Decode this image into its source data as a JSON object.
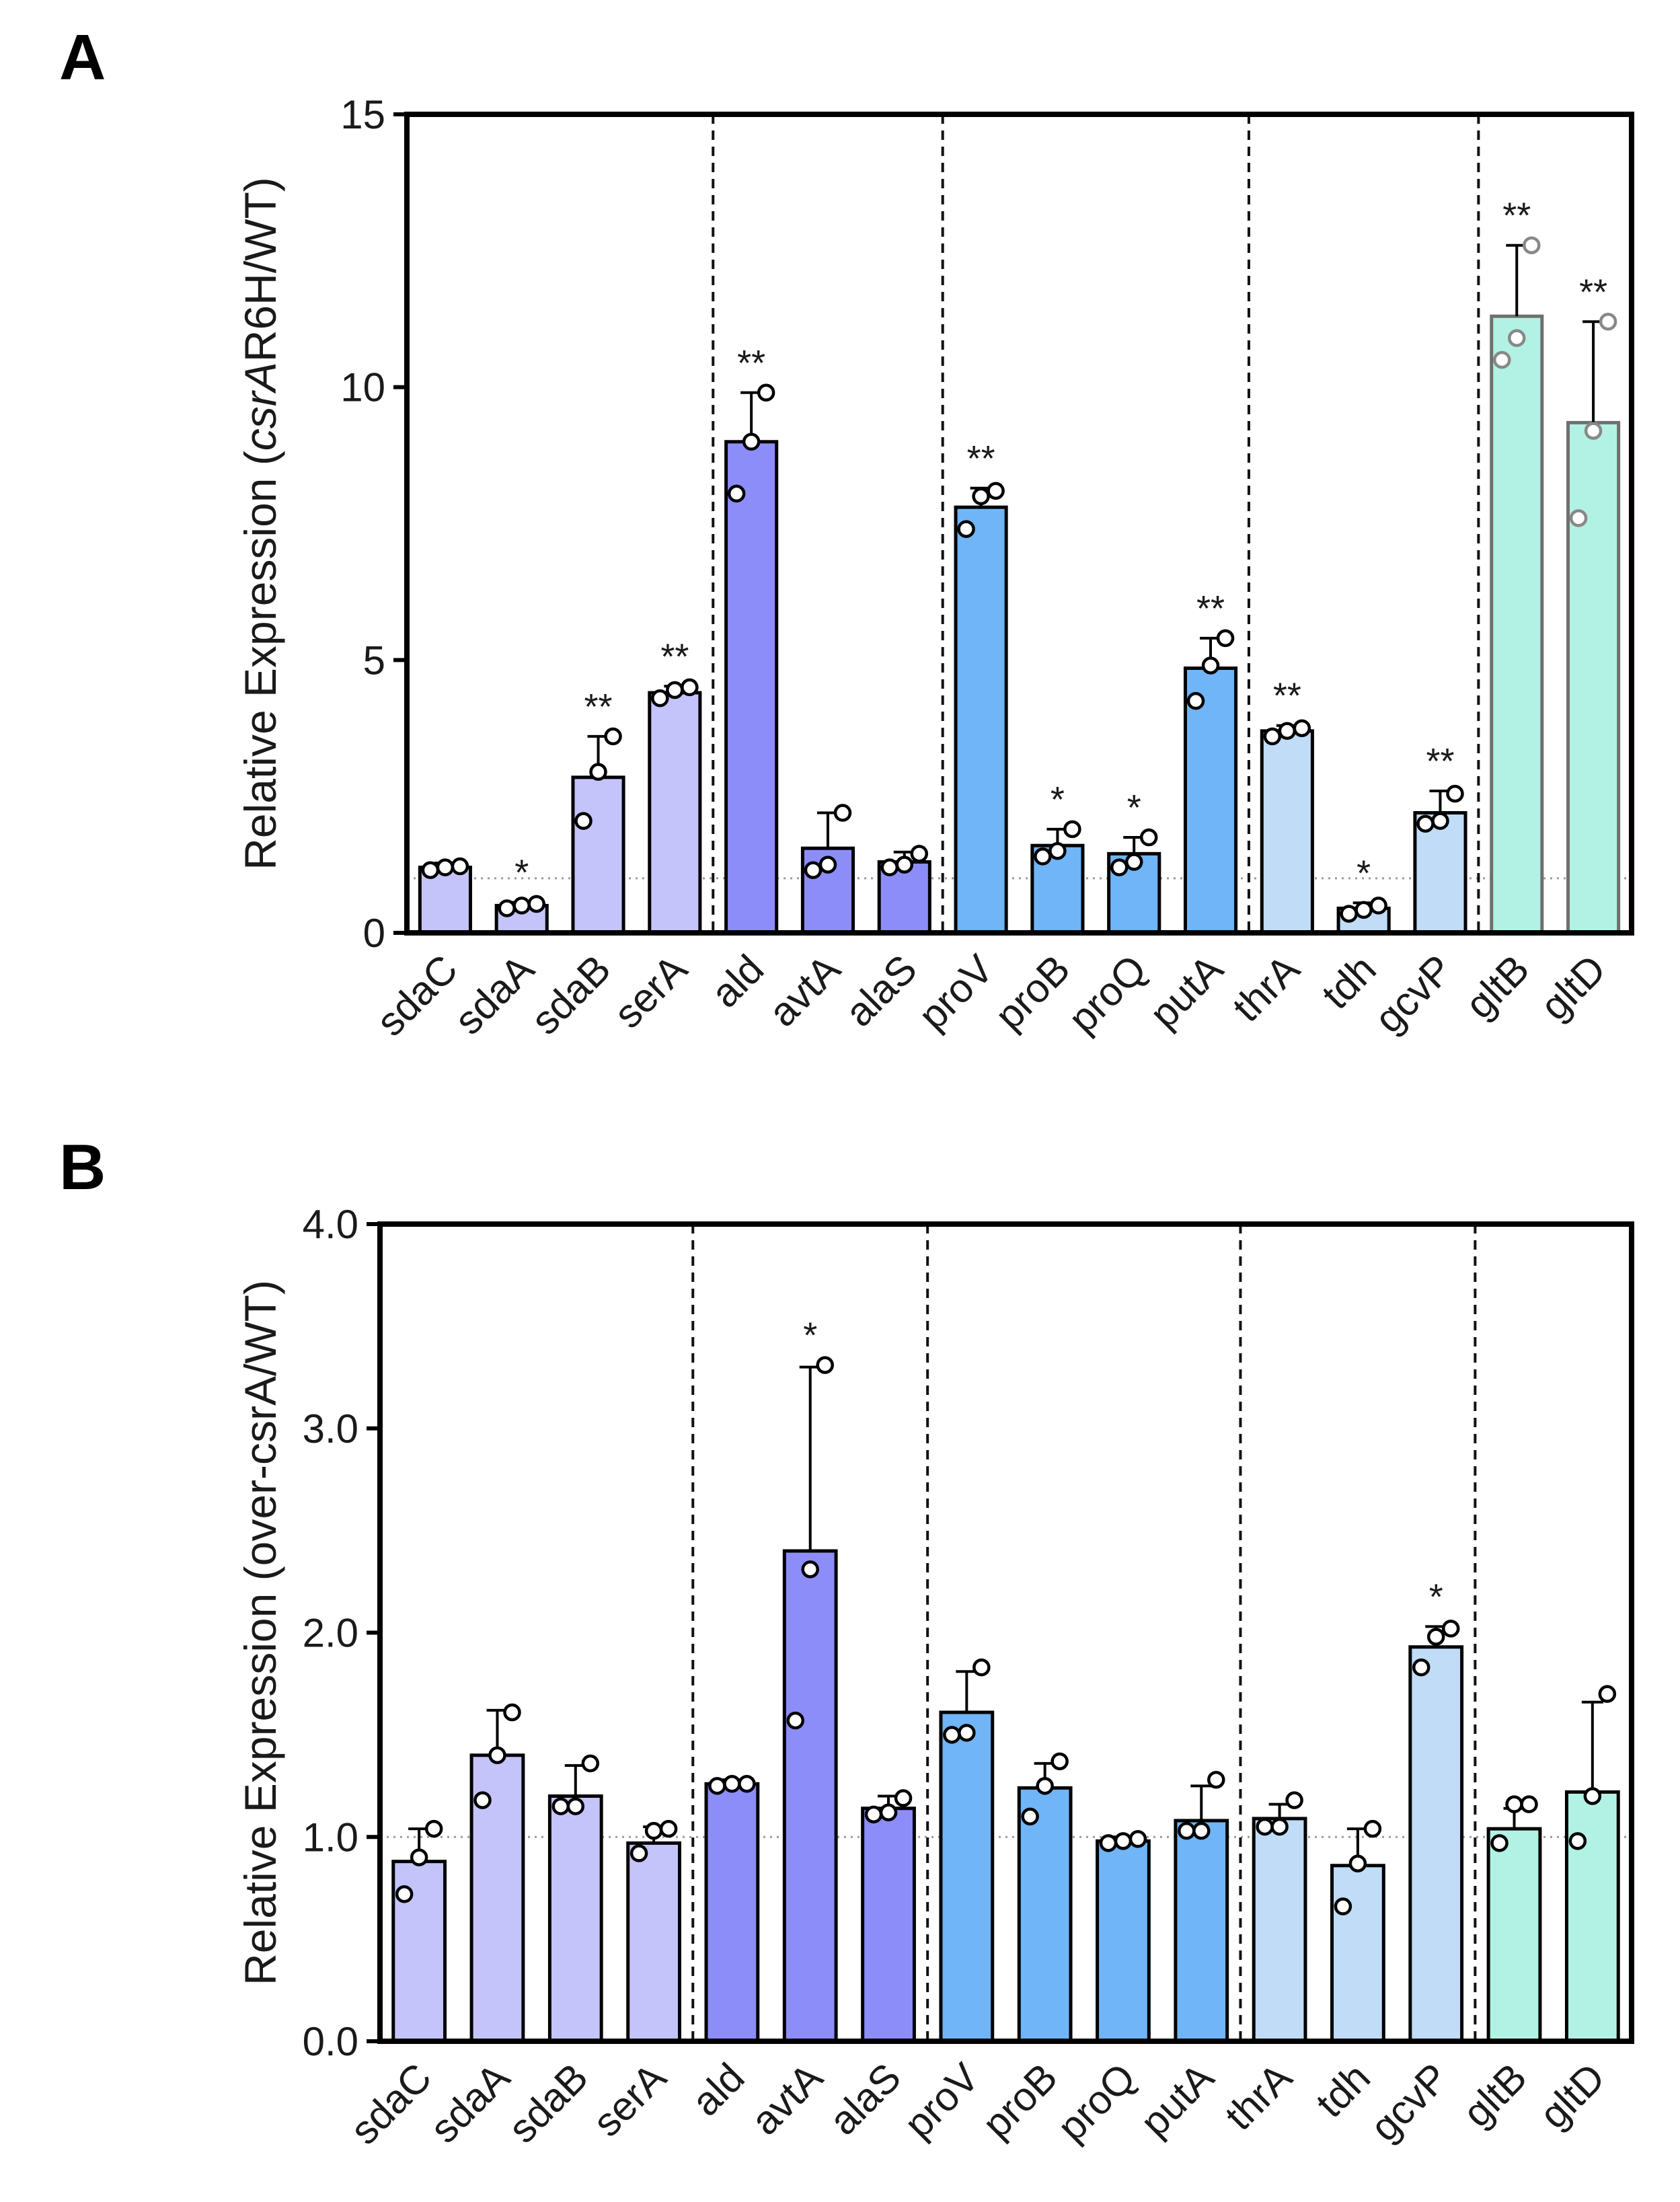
{
  "chart_data": [
    {
      "panel": "A",
      "type": "bar",
      "ylabel_prefix": "Relative Expression (",
      "ylabel_italic": "csrA",
      "ylabel_suffix": "R6H/WT)",
      "ylim": [
        0,
        15
      ],
      "yticks": [
        "0",
        "5",
        "10",
        "15"
      ],
      "ytick_values": [
        0,
        5,
        10,
        15
      ],
      "reference_line": 1,
      "group_separators_after": [
        3,
        6,
        10,
        13
      ],
      "categories": [
        "sdaC",
        "sdaA",
        "sdaB",
        "serA",
        "ald",
        "avtA",
        "alaS",
        "proV",
        "proB",
        "proQ",
        "putA",
        "thrA",
        "tdh",
        "gcvP",
        "gltB",
        "gltD"
      ],
      "colors": [
        "#c4c4fb",
        "#c4c4fb",
        "#c4c4fb",
        "#c4c4fb",
        "#8d8dfa",
        "#8d8dfa",
        "#8d8dfa",
        "#70b5f7",
        "#70b5f7",
        "#70b5f7",
        "#70b5f7",
        "#c0dcf7",
        "#c0dcf7",
        "#c0dcf7",
        "#b2f2e4",
        "#b2f2e4"
      ],
      "values": [
        1.2,
        0.5,
        2.85,
        4.4,
        9.0,
        1.55,
        1.3,
        7.8,
        1.6,
        1.45,
        4.85,
        3.7,
        0.45,
        2.2,
        11.3,
        9.35
      ],
      "errors": [
        0.08,
        0.06,
        0.75,
        0.12,
        0.9,
        0.65,
        0.18,
        0.35,
        0.3,
        0.3,
        0.55,
        0.1,
        0.1,
        0.4,
        1.3,
        1.85
      ],
      "points": [
        [
          1.15,
          1.2,
          1.22
        ],
        [
          0.45,
          0.5,
          0.53
        ],
        [
          2.05,
          2.95,
          3.6
        ],
        [
          4.3,
          4.45,
          4.5
        ],
        [
          8.05,
          9.0,
          9.9
        ],
        [
          1.15,
          1.25,
          2.2
        ],
        [
          1.2,
          1.25,
          1.45
        ],
        [
          7.4,
          8.0,
          8.1
        ],
        [
          1.4,
          1.5,
          1.9
        ],
        [
          1.2,
          1.3,
          1.75
        ],
        [
          4.25,
          4.9,
          5.4
        ],
        [
          3.6,
          3.7,
          3.75
        ],
        [
          0.35,
          0.42,
          0.5
        ],
        [
          2.0,
          2.05,
          2.55
        ],
        [
          10.5,
          10.9,
          12.6
        ],
        [
          7.6,
          9.2,
          11.2
        ]
      ],
      "significance": [
        "",
        "*",
        "**",
        "**",
        "**",
        "",
        "",
        "**",
        "*",
        "*",
        "**",
        "**",
        "*",
        "**",
        "**",
        "**"
      ]
    },
    {
      "panel": "B",
      "type": "bar",
      "ylabel_prefix": "Relative Expression (over-csrA/WT)",
      "ylabel_italic": "",
      "ylabel_suffix": "",
      "ylim": [
        0,
        4
      ],
      "yticks": [
        "0.0",
        "1.0",
        "2.0",
        "3.0",
        "4.0"
      ],
      "ytick_values": [
        0,
        1,
        2,
        3,
        4
      ],
      "reference_line": 1,
      "group_separators_after": [
        3,
        6,
        10,
        13
      ],
      "categories": [
        "sdaC",
        "sdaA",
        "sdaB",
        "serA",
        "ald",
        "avtA",
        "alaS",
        "proV",
        "proB",
        "proQ",
        "putA",
        "thrA",
        "tdh",
        "gcvP",
        "gltB",
        "gltD"
      ],
      "colors": [
        "#c4c4fb",
        "#c4c4fb",
        "#c4c4fb",
        "#c4c4fb",
        "#8d8dfa",
        "#8d8dfa",
        "#8d8dfa",
        "#70b5f7",
        "#70b5f7",
        "#70b5f7",
        "#70b5f7",
        "#c0dcf7",
        "#c0dcf7",
        "#c0dcf7",
        "#b2f2e4",
        "#b2f2e4"
      ],
      "values": [
        0.88,
        1.4,
        1.2,
        0.97,
        1.26,
        2.4,
        1.14,
        1.61,
        1.24,
        0.98,
        1.08,
        1.09,
        0.86,
        1.93,
        1.04,
        1.22
      ],
      "errors": [
        0.16,
        0.22,
        0.15,
        0.08,
        0.02,
        0.9,
        0.06,
        0.2,
        0.12,
        0.02,
        0.17,
        0.07,
        0.18,
        0.1,
        0.1,
        0.44
      ],
      "points": [
        [
          0.72,
          0.9,
          1.04
        ],
        [
          1.18,
          1.4,
          1.61
        ],
        [
          1.15,
          1.15,
          1.36
        ],
        [
          0.92,
          1.03,
          1.04
        ],
        [
          1.25,
          1.26,
          1.26
        ],
        [
          1.57,
          2.31,
          3.31
        ],
        [
          1.11,
          1.12,
          1.19
        ],
        [
          1.5,
          1.51,
          1.83
        ],
        [
          1.1,
          1.25,
          1.37
        ],
        [
          0.97,
          0.98,
          0.99
        ],
        [
          1.03,
          1.03,
          1.28
        ],
        [
          1.05,
          1.05,
          1.18
        ],
        [
          0.66,
          0.87,
          1.04
        ],
        [
          1.83,
          1.98,
          2.02
        ],
        [
          0.97,
          1.16,
          1.16
        ],
        [
          0.98,
          1.2,
          1.7
        ]
      ],
      "significance": [
        "",
        "",
        "",
        "",
        "",
        "*",
        "",
        "",
        "",
        "",
        "",
        "",
        "",
        "*",
        "",
        ""
      ]
    }
  ]
}
